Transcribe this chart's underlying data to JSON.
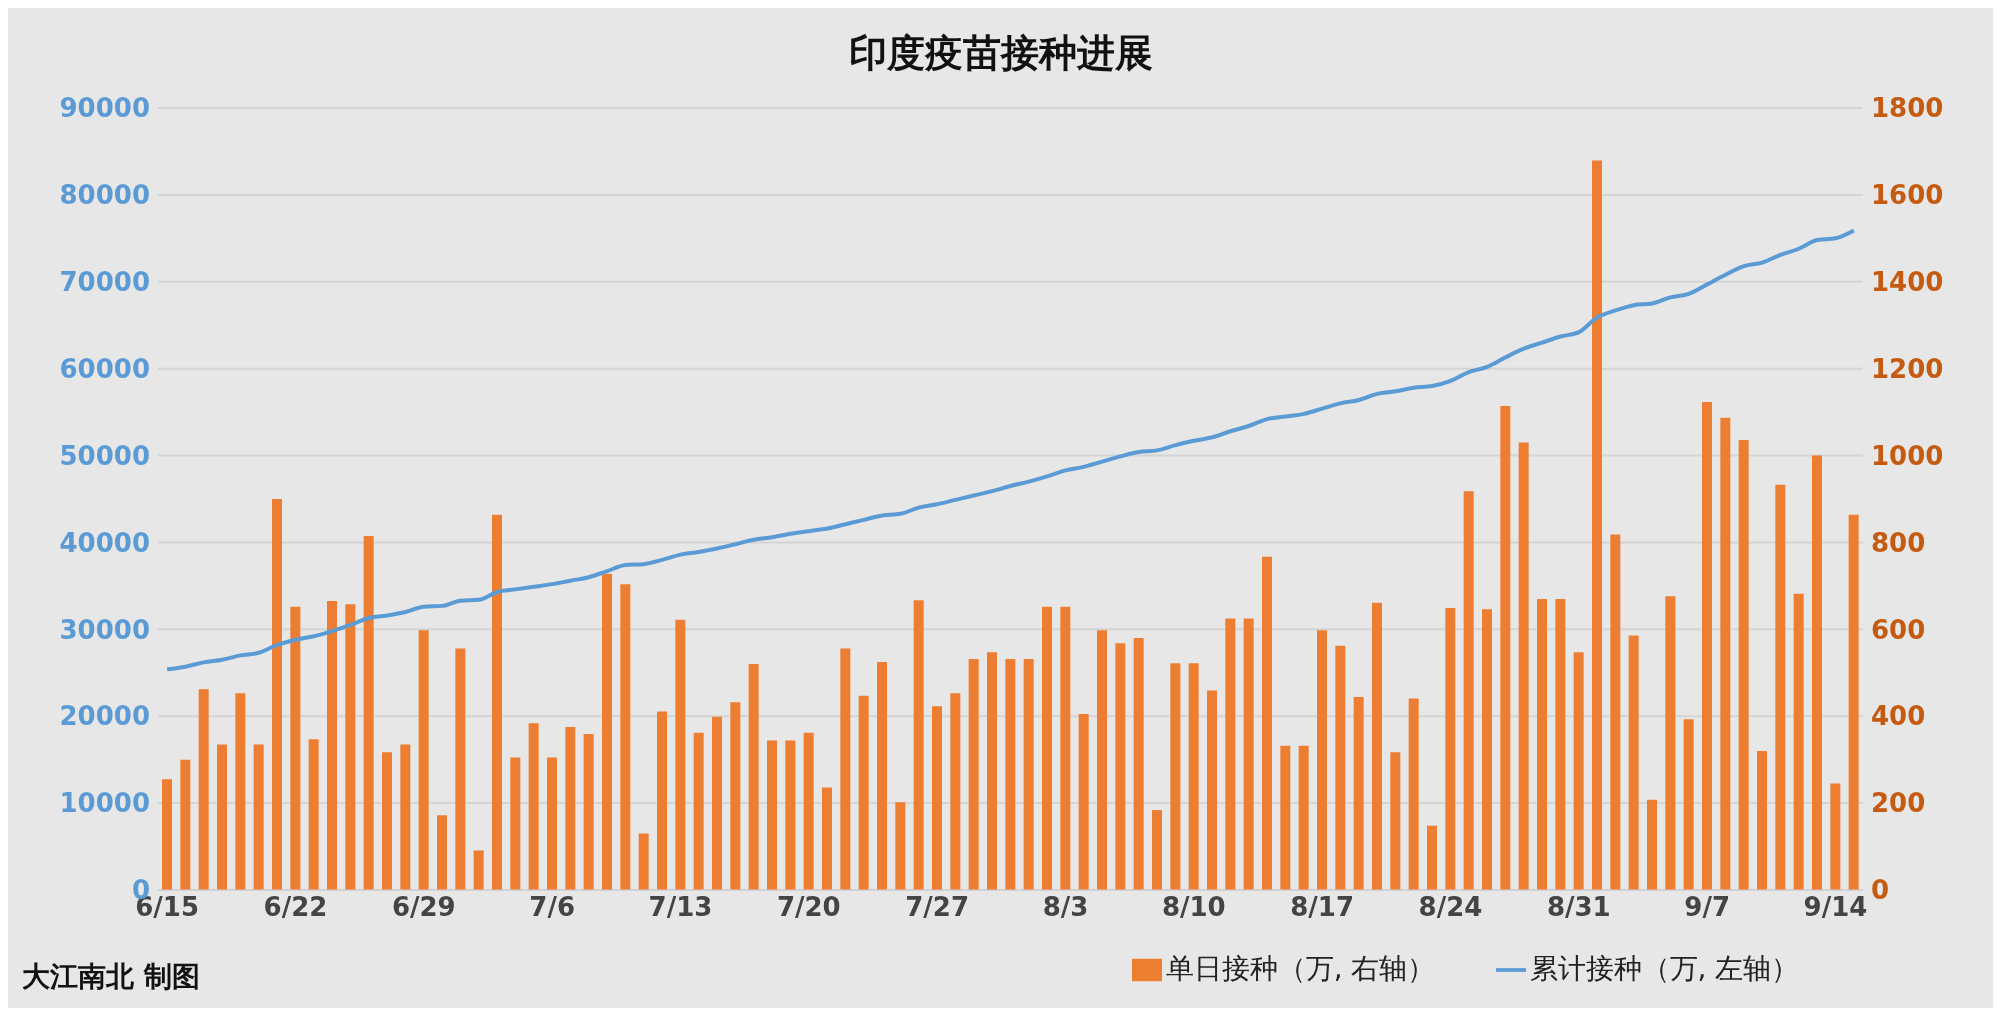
{
  "chart_data": {
    "type": "bar",
    "title": "印度疫苗接种进展",
    "categories": [
      "6/15",
      null,
      null,
      null,
      null,
      null,
      null,
      "6/22",
      null,
      null,
      null,
      null,
      null,
      null,
      "6/29",
      null,
      null,
      null,
      null,
      null,
      null,
      "7/6",
      null,
      null,
      null,
      null,
      null,
      null,
      "7/13",
      null,
      null,
      null,
      null,
      null,
      null,
      "7/20",
      null,
      null,
      null,
      null,
      null,
      null,
      "7/27",
      null,
      null,
      null,
      null,
      null,
      null,
      "8/3",
      null,
      null,
      null,
      null,
      null,
      null,
      "8/10",
      null,
      null,
      null,
      null,
      null,
      null,
      "8/17",
      null,
      null,
      null,
      null,
      null,
      null,
      "8/24",
      null,
      null,
      null,
      null,
      null,
      null,
      "8/31",
      null,
      null,
      null,
      null,
      null,
      null,
      "9/7",
      null,
      null,
      null,
      null,
      null,
      null,
      "9/14",
      null
    ],
    "series": [
      {
        "name": "单日接种（万, 右轴）",
        "axis": "y2",
        "color": "#ed7d31",
        "values": [
          255,
          300,
          462,
          335,
          453,
          335,
          900,
          652,
          347,
          665,
          658,
          815,
          317,
          335,
          598,
          172,
          556,
          91,
          864,
          305,
          384,
          305,
          375,
          359,
          728,
          704,
          130,
          411,
          622,
          362,
          399,
          432,
          520,
          344,
          344,
          362,
          236,
          556,
          447,
          525,
          202,
          667,
          423,
          453,
          532,
          547,
          532,
          532,
          652,
          652,
          405,
          598,
          568,
          580,
          184,
          522,
          522,
          459,
          625,
          625,
          767,
          332,
          332,
          598,
          562,
          444,
          661,
          317,
          441,
          148,
          649,
          918,
          646,
          1114,
          1030,
          670,
          670,
          547,
          1679,
          818,
          586,
          208,
          676,
          393,
          1123,
          1087,
          1036,
          320,
          933,
          682,
          1000,
          245,
          864
        ]
      },
      {
        "name": "累计接种（万, 左轴）",
        "type": "line",
        "color": "#5b9bd5",
        "values": [
          25400,
          25700,
          26200,
          26500,
          27000,
          27300,
          28200,
          28800,
          29200,
          29800,
          30500,
          31300,
          31600,
          32000,
          32600,
          32700,
          33300,
          33400,
          34300,
          34600,
          34900,
          35200,
          35600,
          36000,
          36700,
          37400,
          37500,
          38000,
          38600,
          38900,
          39300,
          39800,
          40300,
          40600,
          41000,
          41300,
          41600,
          42100,
          42600,
          43100,
          43300,
          44000,
          44400,
          44900,
          45400,
          45900,
          46500,
          47000,
          47600,
          48300,
          48700,
          49300,
          49900,
          50400,
          50600,
          51200,
          51700,
          52100,
          52800,
          53400,
          54200,
          54500,
          54800,
          55400,
          56000,
          56400,
          57100,
          57400,
          57800,
          58000,
          58600,
          59600,
          60200,
          61300,
          62300,
          63000,
          63700,
          64200,
          65900,
          66700,
          67300,
          67500,
          68200,
          68600,
          69700,
          70800,
          71800,
          72200,
          73100,
          73800,
          74800,
          75000,
          75900
        ]
      }
    ],
    "ylim": [
      0,
      90000
    ],
    "yticks": [
      0,
      10000,
      20000,
      30000,
      40000,
      50000,
      60000,
      70000,
      80000,
      90000
    ],
    "y2lim": [
      0,
      1800
    ],
    "y2ticks": [
      0,
      200,
      400,
      600,
      800,
      1000,
      1200,
      1400,
      1600,
      1800
    ],
    "grid": "y",
    "legend": "bottom",
    "marker": "none",
    "annotations": [
      "大江南北 制图"
    ]
  }
}
